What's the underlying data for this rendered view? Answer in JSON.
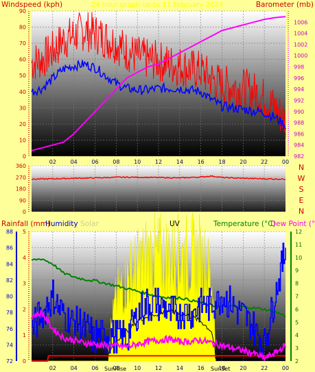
{
  "colors": {
    "background": "#ffff99",
    "wind_gust": "#ff0000",
    "wind_avg": "#0000ff",
    "pressure": "#ff00ff",
    "temperature": "#008000",
    "dew_point": "#ff00ff",
    "humidity": "#0000ff",
    "uv": "#ffff00",
    "solar": "#000000",
    "rain": "#ff0000",
    "compass": "#ff0000"
  },
  "header": {
    "left": "Windspeed (kph)",
    "center": "24 hour graph up to  11 February 2024",
    "right": "Barometer (mb)"
  },
  "compass": [
    "N",
    "W",
    "S",
    "E",
    "N"
  ],
  "bottom_header": {
    "rainfall": "Rainfall (mm)",
    "humidity": "Humidity",
    "solar": "Solar",
    "uv": "UV",
    "temperature": "Temperature (°C)",
    "dewpoint": "Dew Point (°C)"
  },
  "markers": {
    "sunrise": "SunRise",
    "sunset": "SunSet",
    "uv_label": "UV"
  },
  "chart_data": [
    {
      "id": "wind",
      "type": "line",
      "title": "",
      "xlabel": "",
      "x_ticks": [
        "02",
        "04",
        "06",
        "08",
        "10",
        "12",
        "14",
        "16",
        "18",
        "20",
        "22",
        "00"
      ],
      "xlim_hours": [
        0,
        24
      ],
      "ylim": [
        0,
        90
      ],
      "y_ticks": [
        "0",
        "10",
        "20",
        "30",
        "40",
        "50",
        "60",
        "70",
        "80",
        "90"
      ],
      "y2lim": [
        982,
        1008
      ],
      "y2_ticks": [
        "982",
        "984",
        "986",
        "988",
        "990",
        "992",
        "994",
        "996",
        "998",
        "1000",
        "1002",
        "1004",
        "1006"
      ],
      "series": [
        {
          "name": "Windspeed (kph)",
          "axis": "left",
          "hours": [
            0,
            1,
            2,
            3,
            4,
            5,
            6,
            7,
            8,
            9,
            10,
            11,
            12,
            13,
            14,
            15,
            16,
            17,
            18,
            19,
            20,
            21,
            22,
            23,
            24
          ],
          "values": [
            58,
            60,
            65,
            72,
            75,
            78,
            76,
            73,
            70,
            65,
            62,
            60,
            59,
            57,
            56,
            54,
            53,
            48,
            44,
            43,
            42,
            40,
            36,
            30,
            22
          ]
        },
        {
          "name": "Average",
          "axis": "left",
          "hours": [
            0,
            1,
            2,
            3,
            4,
            5,
            6,
            7,
            8,
            9,
            10,
            11,
            12,
            13,
            14,
            15,
            16,
            17,
            18,
            19,
            20,
            21,
            22,
            23,
            24
          ],
          "values": [
            40,
            42,
            48,
            54,
            56,
            57,
            55,
            50,
            45,
            42,
            41,
            41,
            42,
            42,
            42,
            41,
            40,
            35,
            31,
            30,
            29,
            28,
            27,
            24,
            19
          ]
        },
        {
          "name": "Barometer (mb)",
          "axis": "right",
          "hours": [
            0,
            1,
            2,
            3,
            4,
            5,
            6,
            7,
            8,
            9,
            10,
            11,
            12,
            13,
            14,
            15,
            16,
            17,
            18,
            19,
            20,
            21,
            22,
            23,
            24
          ],
          "values": [
            983,
            983.5,
            984,
            984.5,
            986,
            988,
            990,
            992,
            994,
            996,
            997,
            998,
            998.5,
            999.5,
            1000.5,
            1001.5,
            1002.5,
            1003.5,
            1004.5,
            1005,
            1005.5,
            1006,
            1006.5,
            1006.8,
            1007
          ]
        }
      ]
    },
    {
      "id": "direction",
      "type": "line",
      "title": "",
      "xlabel": "",
      "ylim": [
        0,
        360
      ],
      "y_ticks": [
        "0",
        "90",
        "180",
        "270",
        "360"
      ],
      "series": [
        {
          "name": "Direction",
          "hours": [
            0,
            2,
            4,
            6,
            8,
            10,
            12,
            14,
            16,
            17,
            18,
            20,
            22,
            24
          ],
          "values": [
            255,
            258,
            262,
            265,
            270,
            270,
            268,
            265,
            272,
            280,
            268,
            262,
            258,
            255
          ]
        }
      ]
    },
    {
      "id": "temp-hum",
      "type": "line",
      "title": "",
      "xlabel": "",
      "ylim_humidity": [
        72,
        88
      ],
      "humidity_ticks": [
        "72",
        "74",
        "76",
        "78",
        "80",
        "82",
        "84",
        "86",
        "88"
      ],
      "ylim_temp": [
        2,
        12
      ],
      "temp_ticks": [
        "2",
        "3",
        "4",
        "5",
        "6",
        "7",
        "8",
        "9",
        "10",
        "11",
        "12"
      ],
      "ylim_rain": [
        0,
        5
      ],
      "rain_ticks": [
        "0",
        "1",
        "2",
        "3",
        "4",
        "5"
      ],
      "series": [
        {
          "name": "Temperature (°C)",
          "hours": [
            0,
            1,
            2,
            3,
            4,
            5,
            6,
            7,
            8,
            9,
            10,
            11,
            12,
            13,
            14,
            15,
            16,
            17,
            18,
            19,
            20,
            21,
            22,
            23,
            24
          ],
          "values": [
            9.8,
            9.9,
            9.5,
            8.8,
            8.5,
            8.3,
            8.2,
            8.0,
            7.8,
            7.6,
            7.4,
            7.2,
            7.0,
            6.9,
            6.9,
            6.7,
            6.5,
            6.3,
            6.2,
            6.2,
            6.2,
            6.1,
            6.0,
            5.8,
            5.5
          ]
        },
        {
          "name": "Dew Point (°C)",
          "hours": [
            0,
            1,
            2,
            3,
            4,
            5,
            6,
            7,
            8,
            9,
            10,
            11,
            12,
            13,
            14,
            15,
            16,
            17,
            18,
            19,
            20,
            21,
            22,
            23,
            24
          ],
          "values": [
            5.5,
            5.7,
            4.5,
            3.8,
            3.6,
            3.4,
            3.3,
            3.2,
            3.2,
            3.1,
            3.3,
            3.5,
            3.6,
            3.7,
            3.5,
            3.5,
            3.6,
            3.4,
            3.2,
            3.0,
            2.8,
            2.6,
            2.2,
            2.6,
            3.2
          ]
        },
        {
          "name": "Humidity",
          "hours": [
            0,
            1,
            2,
            3,
            4,
            5,
            6,
            7,
            8,
            9,
            10,
            11,
            12,
            13,
            14,
            15,
            16,
            17,
            18,
            19,
            20,
            21,
            22,
            23,
            24
          ],
          "values": [
            76,
            78,
            80,
            78,
            77,
            76,
            75,
            75,
            75,
            75,
            78,
            79,
            79,
            78,
            78,
            78,
            79,
            79,
            80,
            79,
            78,
            76,
            74,
            80,
            86
          ]
        },
        {
          "name": "Solar",
          "hours": [
            0,
            7.2,
            7.3,
            8,
            9,
            10,
            11,
            12,
            13,
            14,
            15,
            16,
            17,
            17.3,
            17.4,
            24
          ],
          "values": [
            0,
            0,
            0.3,
            0.8,
            1.2,
            1.6,
            1.8,
            1.9,
            2.0,
            1.9,
            1.8,
            1.6,
            1.2,
            0.6,
            0,
            0
          ]
        },
        {
          "name": "UV",
          "hours": [
            0,
            7.2,
            7.3,
            8,
            9,
            10,
            11,
            12,
            13,
            14,
            15,
            16,
            17,
            17.3,
            17.4,
            24
          ],
          "values": [
            0,
            0,
            1,
            3,
            4,
            4.5,
            5,
            5,
            5,
            5,
            5,
            5,
            4,
            2,
            0,
            0
          ]
        },
        {
          "name": "Rainfall (mm)",
          "hours": [
            0,
            1.5,
            1.6,
            24
          ],
          "values": [
            0,
            0,
            0.2,
            0.2
          ]
        }
      ]
    }
  ]
}
